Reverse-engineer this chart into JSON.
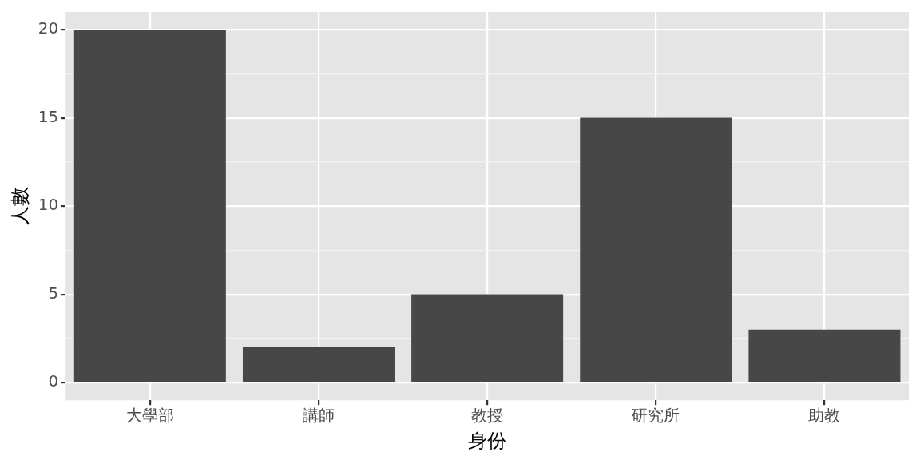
{
  "chart_data": {
    "type": "bar",
    "xlabel": "身份",
    "ylabel": "人數",
    "categories": [
      "大學部",
      "講師",
      "教授",
      "研究所",
      "助教"
    ],
    "values": [
      20,
      2,
      5,
      15,
      3
    ],
    "color": "#474747",
    "ylim": [
      -1,
      21
    ],
    "yticks": [
      0,
      {
        "value": 2.5,
        "label": null
      },
      5,
      {
        "value": 7.5,
        "label": null
      },
      10,
      {
        "value": 12.5,
        "label": null
      },
      15,
      {
        "value": 17.5,
        "label": null
      },
      20
    ],
    "grid": true
  }
}
